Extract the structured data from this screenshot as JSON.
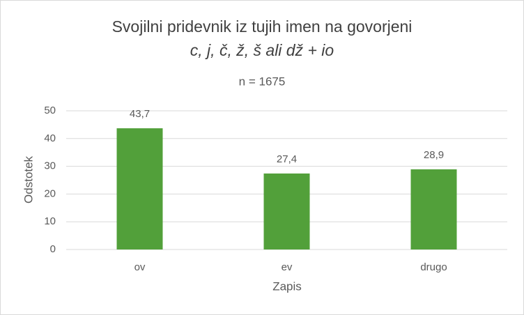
{
  "chart_data": {
    "type": "bar",
    "title": [
      "Svojilni pridevnik iz tujih imen na govorjeni",
      "c, j, č, ž, š ali dž + io"
    ],
    "subtitle": "n = 1675",
    "x_label": "Zapis",
    "y_label": "Odstotek",
    "categories": [
      "ov",
      "ev",
      "drugo"
    ],
    "values": [
      43.7,
      27.4,
      28.9
    ],
    "value_labels": [
      "43,7",
      "27,4",
      "28,9"
    ],
    "color": "#52a03a",
    "ylim": [
      0,
      50
    ],
    "yticks": [
      0,
      10,
      20,
      30,
      40,
      50
    ],
    "grid": true
  }
}
